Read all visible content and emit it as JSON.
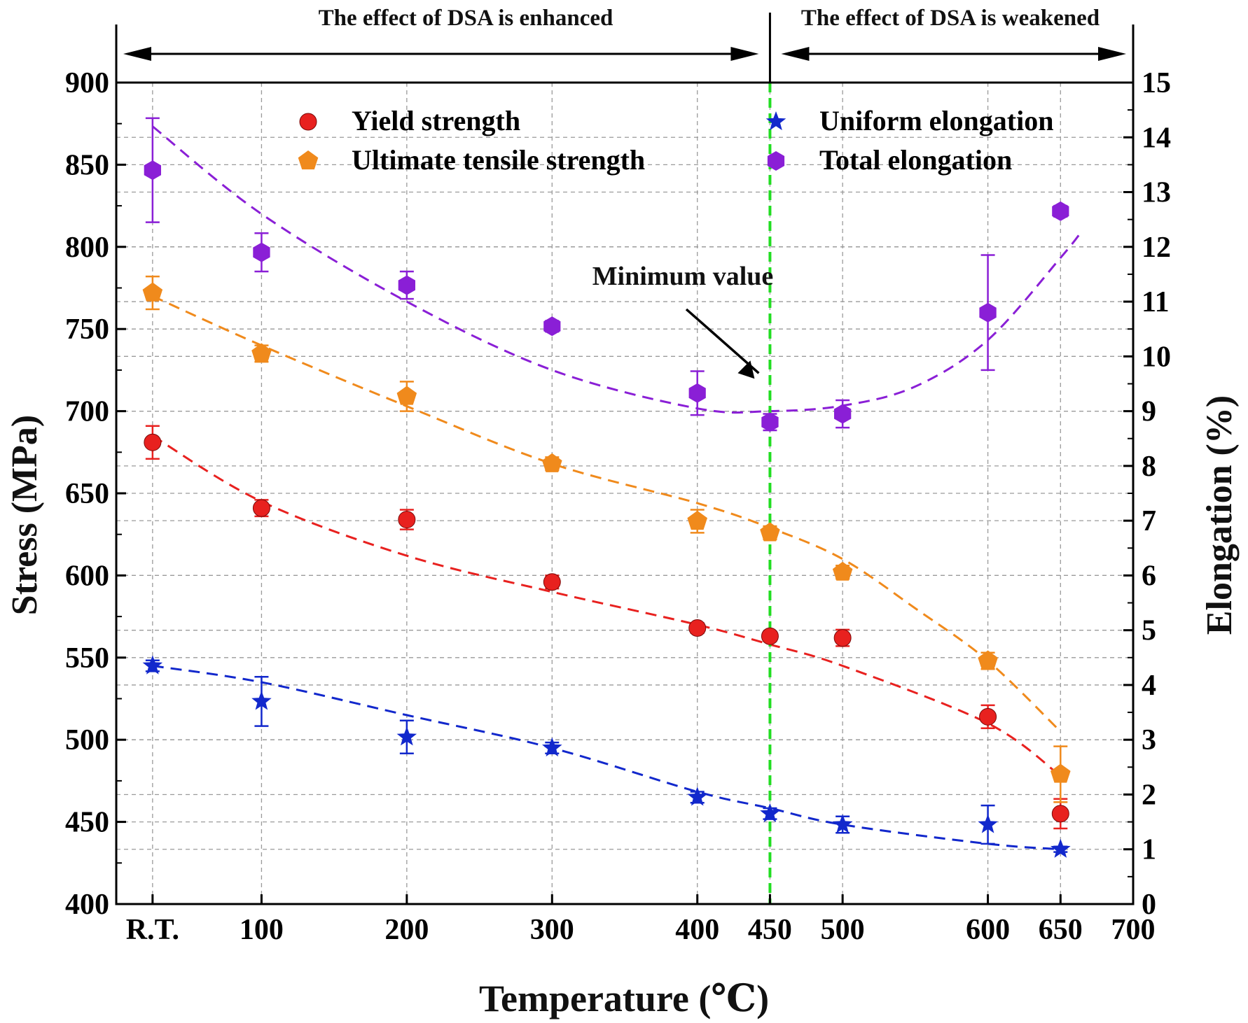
{
  "chart_data": {
    "type": "scatter",
    "title": "",
    "xlabel": "Temperature (℃)",
    "ylabel_left": "Stress (MPa)",
    "ylabel_right": "Elongation (%)",
    "x_ticks": [
      "R.T.",
      "100",
      "200",
      "300",
      "400",
      "450",
      "500",
      "600",
      "650",
      "700"
    ],
    "x_tick_values": [
      25,
      100,
      200,
      300,
      400,
      450,
      500,
      600,
      650,
      700
    ],
    "xlim": [
      0,
      700
    ],
    "ylim_left": [
      400,
      900
    ],
    "ylim_right": [
      0,
      15
    ],
    "y_ticks_left": [
      400,
      450,
      500,
      550,
      600,
      650,
      700,
      750,
      800,
      850,
      900
    ],
    "y_ticks_right": [
      0,
      1,
      2,
      3,
      4,
      5,
      6,
      7,
      8,
      9,
      10,
      11,
      12,
      13,
      14,
      15
    ],
    "grid": true,
    "legend_position": "top",
    "region_labels": {
      "left": "The effect of DSA is enhanced",
      "right": "The effect of DSA is weakened"
    },
    "divider_x": 450,
    "annotation": {
      "text": "Minimum value",
      "target": [
        450,
        8.8
      ]
    },
    "series": [
      {
        "name": "Yield strength",
        "axis": "left",
        "color": "#e8211f",
        "marker": "circle",
        "x": [
          25,
          100,
          200,
          300,
          400,
          450,
          500,
          600,
          650
        ],
        "values": [
          681,
          641,
          634,
          596,
          568,
          563,
          562,
          514,
          455
        ],
        "errors": [
          10,
          5,
          6,
          4,
          3,
          3,
          5,
          7,
          9
        ],
        "trend": [
          [
            25,
            685
          ],
          [
            100,
            645
          ],
          [
            200,
            612
          ],
          [
            300,
            590
          ],
          [
            400,
            570
          ],
          [
            450,
            558
          ],
          [
            500,
            545
          ],
          [
            600,
            510
          ],
          [
            650,
            478
          ]
        ]
      },
      {
        "name": "Ultimate tensile strength",
        "axis": "left",
        "color": "#f08a1c",
        "marker": "pentagon",
        "x": [
          25,
          100,
          200,
          300,
          400,
          450,
          500,
          600,
          650
        ],
        "values": [
          772,
          735,
          709,
          668,
          633,
          626,
          602,
          548,
          479
        ],
        "errors": [
          10,
          5,
          9,
          4,
          7,
          4,
          4,
          5,
          17
        ],
        "trend": [
          [
            25,
            770
          ],
          [
            100,
            740
          ],
          [
            200,
            703
          ],
          [
            300,
            668
          ],
          [
            400,
            644
          ],
          [
            450,
            629
          ],
          [
            500,
            610
          ],
          [
            550,
            580
          ],
          [
            600,
            548
          ],
          [
            650,
            505
          ]
        ]
      },
      {
        "name": "Uniform elongation",
        "axis": "right",
        "color": "#1228cc",
        "marker": "star",
        "x": [
          25,
          100,
          200,
          300,
          400,
          450,
          500,
          600,
          650
        ],
        "values": [
          4.35,
          3.7,
          3.05,
          2.85,
          1.95,
          1.65,
          1.45,
          1.45,
          1.0
        ],
        "errors": [
          0.1,
          0.45,
          0.3,
          0.1,
          0.1,
          0.1,
          0.15,
          0.35,
          0.05
        ],
        "trend": [
          [
            25,
            4.35
          ],
          [
            100,
            4.05
          ],
          [
            200,
            3.45
          ],
          [
            300,
            2.85
          ],
          [
            400,
            2.05
          ],
          [
            450,
            1.75
          ],
          [
            500,
            1.45
          ],
          [
            600,
            1.1
          ],
          [
            650,
            1.0
          ]
        ]
      },
      {
        "name": "Total elongation",
        "axis": "right",
        "color": "#8a1fd6",
        "marker": "hexagon",
        "x": [
          25,
          100,
          200,
          300,
          400,
          450,
          500,
          600,
          650
        ],
        "values": [
          13.4,
          11.9,
          11.3,
          10.55,
          9.33,
          8.8,
          8.95,
          10.8,
          12.65
        ],
        "errors": [
          0.95,
          0.35,
          0.25,
          0.1,
          0.4,
          0.15,
          0.25,
          1.05,
          0.1
        ],
        "trend": [
          [
            25,
            14.2
          ],
          [
            100,
            12.6
          ],
          [
            200,
            11.0
          ],
          [
            300,
            9.75
          ],
          [
            400,
            9.05
          ],
          [
            450,
            9.0
          ],
          [
            500,
            9.1
          ],
          [
            550,
            9.45
          ],
          [
            600,
            10.3
          ],
          [
            650,
            11.8
          ],
          [
            665,
            12.3
          ]
        ]
      }
    ]
  }
}
